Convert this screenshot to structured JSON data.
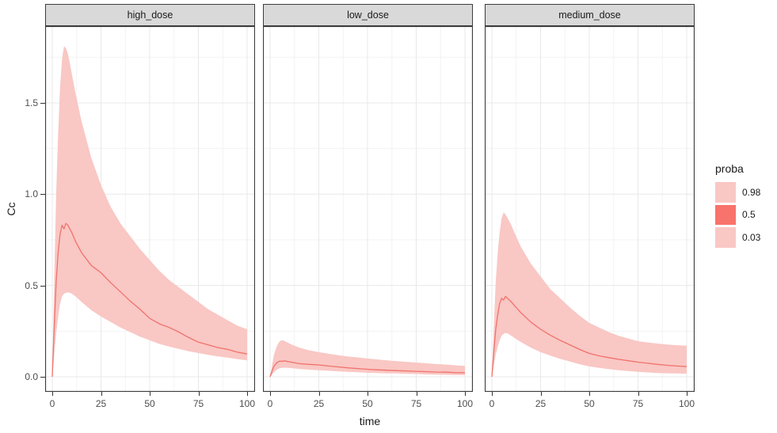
{
  "colors": {
    "ribbon_fill": "#F9C7C4",
    "median_line": "#F0726B",
    "legend_mid": "#F8736B",
    "strip_fill": "#D9D9D9",
    "panel_border": "#3C3C3C",
    "grid_major": "#E8E8E8",
    "grid_minor": "#F3F3F3",
    "tick_color": "#333333",
    "tick_label_color": "#4D4D4D",
    "background": "#FFFFFF"
  },
  "chart_data": {
    "type": "area",
    "title": "",
    "xlabel": "time",
    "ylabel": "Cc",
    "xlim": [
      0,
      100
    ],
    "ylim": [
      -0.08,
      1.92
    ],
    "grid": true,
    "legend_position": "right",
    "x_ticks": [
      0,
      25,
      50,
      75,
      100
    ],
    "x_tick_labels": [
      "0",
      "25",
      "50",
      "75",
      "100"
    ],
    "x_minor_ticks": [
      12.5,
      37.5,
      62.5,
      87.5
    ],
    "y_ticks": [
      0,
      0.5,
      1.0,
      1.5
    ],
    "y_tick_labels": [
      "0.0",
      "0.5",
      "1.0",
      "1.5"
    ],
    "y_minor_ticks": [
      0.25,
      0.75,
      1.25,
      1.75
    ],
    "legend": {
      "title": "proba",
      "entries": [
        {
          "label": "0.98",
          "color": "#F9C7C4"
        },
        {
          "label": "0.5",
          "color": "#F8736B"
        },
        {
          "label": "0.03",
          "color": "#F9C7C4"
        }
      ]
    },
    "time": [
      0,
      1,
      2,
      3,
      4,
      5,
      6,
      7,
      8,
      9,
      10,
      12,
      15,
      20,
      25,
      30,
      35,
      40,
      45,
      50,
      55,
      60,
      65,
      70,
      75,
      80,
      85,
      90,
      95,
      100
    ],
    "facets": [
      {
        "label": "high_dose",
        "q98": [
          0,
          0.55,
          1.0,
          1.33,
          1.58,
          1.74,
          1.81,
          1.8,
          1.77,
          1.72,
          1.66,
          1.55,
          1.4,
          1.2,
          1.05,
          0.93,
          0.84,
          0.77,
          0.7,
          0.64,
          0.58,
          0.53,
          0.49,
          0.45,
          0.41,
          0.37,
          0.34,
          0.31,
          0.28,
          0.26
        ],
        "median": [
          0,
          0.28,
          0.52,
          0.68,
          0.78,
          0.83,
          0.81,
          0.84,
          0.83,
          0.81,
          0.79,
          0.74,
          0.68,
          0.61,
          0.57,
          0.515,
          0.465,
          0.415,
          0.37,
          0.32,
          0.29,
          0.27,
          0.245,
          0.215,
          0.19,
          0.175,
          0.16,
          0.15,
          0.135,
          0.125
        ],
        "q03": [
          0,
          0.12,
          0.24,
          0.33,
          0.4,
          0.44,
          0.455,
          0.46,
          0.462,
          0.46,
          0.455,
          0.44,
          0.41,
          0.365,
          0.33,
          0.3,
          0.27,
          0.245,
          0.22,
          0.2,
          0.18,
          0.165,
          0.153,
          0.14,
          0.13,
          0.12,
          0.112,
          0.105,
          0.097,
          0.09
        ]
      },
      {
        "label": "low_dose",
        "q98": [
          0,
          0.065,
          0.12,
          0.155,
          0.18,
          0.195,
          0.2,
          0.198,
          0.193,
          0.188,
          0.182,
          0.172,
          0.16,
          0.145,
          0.135,
          0.126,
          0.118,
          0.111,
          0.106,
          0.1,
          0.095,
          0.09,
          0.086,
          0.082,
          0.078,
          0.074,
          0.07,
          0.067,
          0.063,
          0.06
        ],
        "median": [
          0,
          0.032,
          0.058,
          0.072,
          0.081,
          0.086,
          0.084,
          0.087,
          0.086,
          0.084,
          0.082,
          0.078,
          0.072,
          0.068,
          0.065,
          0.059,
          0.054,
          0.049,
          0.045,
          0.041,
          0.038,
          0.036,
          0.034,
          0.032,
          0.03,
          0.028,
          0.026,
          0.025,
          0.023,
          0.022
        ],
        "q03": [
          0,
          0.012,
          0.025,
          0.035,
          0.042,
          0.047,
          0.049,
          0.05,
          0.05,
          0.049,
          0.048,
          0.046,
          0.043,
          0.039,
          0.036,
          0.033,
          0.03,
          0.027,
          0.025,
          0.022,
          0.021,
          0.019,
          0.018,
          0.016,
          0.015,
          0.013,
          0.012,
          0.011,
          0.01,
          0.009
        ]
      },
      {
        "label": "medium_dose",
        "q98": [
          0,
          0.28,
          0.52,
          0.68,
          0.79,
          0.87,
          0.9,
          0.89,
          0.87,
          0.85,
          0.83,
          0.78,
          0.71,
          0.62,
          0.55,
          0.48,
          0.43,
          0.38,
          0.335,
          0.295,
          0.27,
          0.245,
          0.225,
          0.21,
          0.195,
          0.188,
          0.182,
          0.177,
          0.173,
          0.17
        ],
        "median": [
          0,
          0.14,
          0.26,
          0.34,
          0.4,
          0.43,
          0.42,
          0.44,
          0.43,
          0.42,
          0.41,
          0.385,
          0.35,
          0.3,
          0.26,
          0.228,
          0.2,
          0.175,
          0.15,
          0.128,
          0.115,
          0.105,
          0.096,
          0.088,
          0.08,
          0.074,
          0.068,
          0.063,
          0.059,
          0.056
        ],
        "q03": [
          0,
          0.06,
          0.12,
          0.165,
          0.2,
          0.225,
          0.235,
          0.24,
          0.238,
          0.232,
          0.225,
          0.21,
          0.19,
          0.16,
          0.135,
          0.116,
          0.099,
          0.084,
          0.069,
          0.057,
          0.049,
          0.042,
          0.036,
          0.031,
          0.027,
          0.024,
          0.021,
          0.019,
          0.018,
          0.017
        ]
      }
    ]
  }
}
